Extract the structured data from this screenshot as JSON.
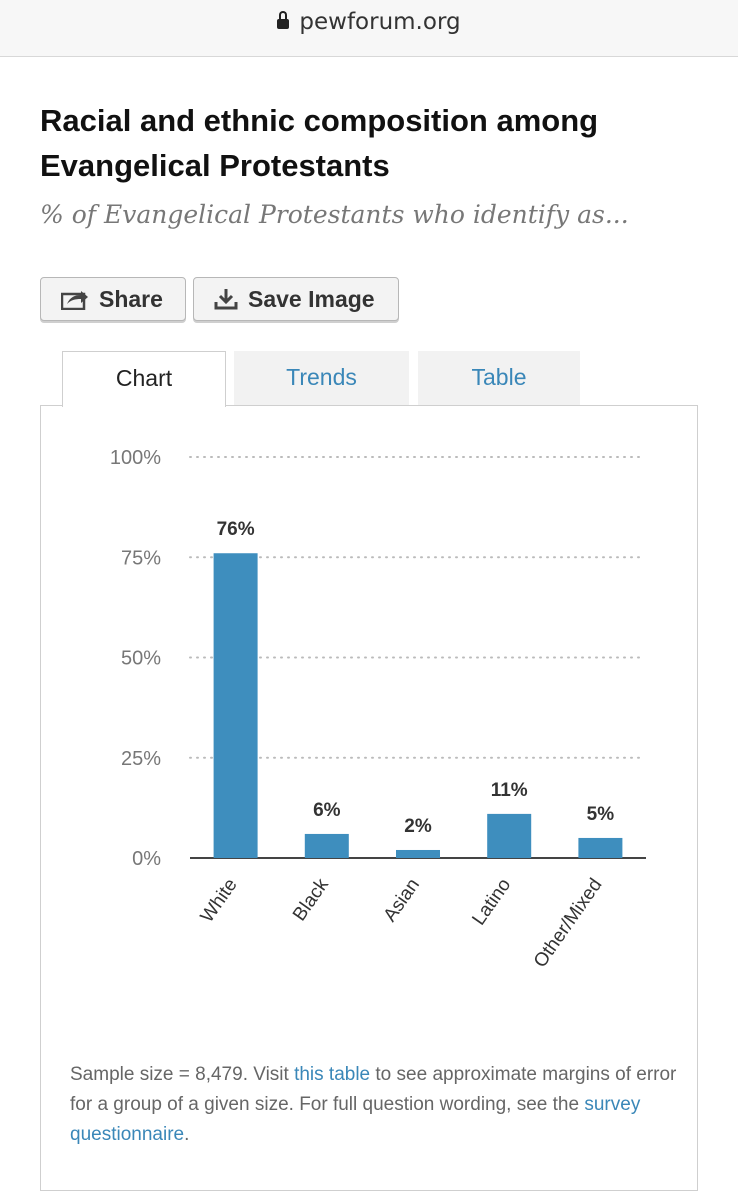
{
  "browser": {
    "url": "pewforum.org"
  },
  "header": {
    "title": "Racial and ethnic composition among Evangelical Protestants",
    "subtitle": "% of Evangelical Protestants who identify as..."
  },
  "toolbar": {
    "share_label": "Share",
    "save_label": "Save Image"
  },
  "tabs": [
    {
      "label": "Chart",
      "active": true
    },
    {
      "label": "Trends",
      "active": false
    },
    {
      "label": "Table",
      "active": false
    }
  ],
  "chart_data": {
    "type": "bar",
    "categories": [
      "White",
      "Black",
      "Asian",
      "Latino",
      "Other/Mixed"
    ],
    "values": [
      76,
      6,
      2,
      11,
      5
    ],
    "value_labels": [
      "76%",
      "6%",
      "2%",
      "11%",
      "5%"
    ],
    "yticks": [
      "0%",
      "25%",
      "50%",
      "75%",
      "100%"
    ],
    "ylim": [
      0,
      100
    ],
    "bar_color": "#3e8ebe",
    "grid": true
  },
  "footnote": {
    "part1": "Sample size = 8,479. Visit ",
    "link1": "this table",
    "part2": " to see approximate margins of error for a group of a given size. For full question wording, see the ",
    "link2": "survey questionnaire",
    "part3": "."
  },
  "colors": {
    "link": "#3a87b8",
    "accent": "#3e8ebe"
  }
}
